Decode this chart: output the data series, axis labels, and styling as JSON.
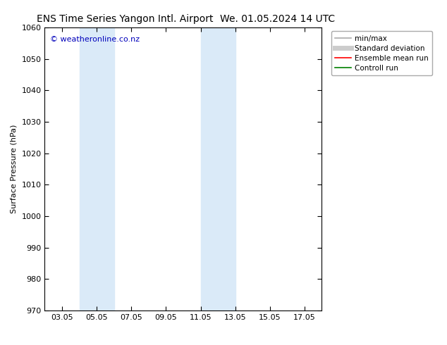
{
  "title_left": "ENS Time Series Yangon Intl. Airport",
  "title_right": "We. 01.05.2024 14 UTC",
  "ylabel": "Surface Pressure (hPa)",
  "ylim": [
    970,
    1060
  ],
  "yticks": [
    970,
    980,
    990,
    1000,
    1010,
    1020,
    1030,
    1040,
    1050,
    1060
  ],
  "xtick_labels": [
    "03.05",
    "05.05",
    "07.05",
    "09.05",
    "11.05",
    "13.05",
    "15.05",
    "17.05"
  ],
  "shade_bands": [
    {
      "xmin": 4.0,
      "xmax": 6.0
    },
    {
      "xmin": 11.0,
      "xmax": 13.0
    }
  ],
  "shade_color": "#daeaf8",
  "watermark_text": "© weatheronline.co.nz",
  "watermark_color": "#0000bb",
  "legend_entries": [
    {
      "label": "min/max",
      "color": "#aaaaaa",
      "lw": 1.2
    },
    {
      "label": "Standard deviation",
      "color": "#cccccc",
      "lw": 5
    },
    {
      "label": "Ensemble mean run",
      "color": "#ff0000",
      "lw": 1.2
    },
    {
      "label": "Controll run",
      "color": "#008000",
      "lw": 1.2
    }
  ],
  "bg_color": "#ffffff",
  "title_fontsize": 10,
  "axis_fontsize": 8,
  "tick_fontsize": 8,
  "legend_fontsize": 7.5,
  "watermark_fontsize": 8
}
